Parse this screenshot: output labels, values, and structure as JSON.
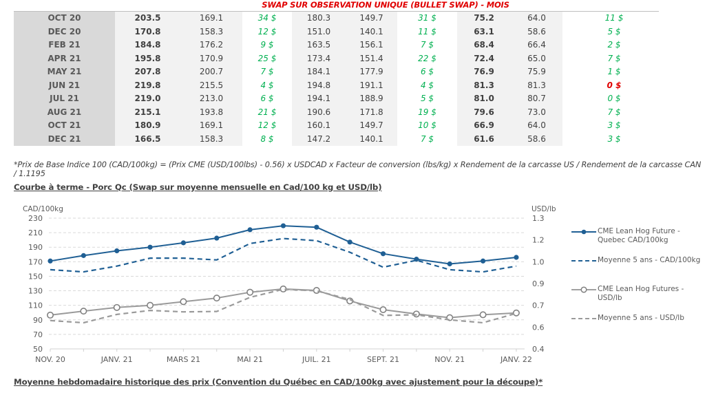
{
  "table": {
    "title": "SWAP SUR OBSERVATION UNIQUE (BULLET SWAP) - MOIS",
    "rows": [
      {
        "month": "OCT 20",
        "a1": "203.5",
        "a2": "169.1",
        "ad": "34 $",
        "b1": "180.3",
        "b2": "149.7",
        "bd": "31 $",
        "c1": "75.2",
        "c2": "64.0",
        "cd": "11 $",
        "cd_neg": false
      },
      {
        "month": "DEC 20",
        "a1": "170.8",
        "a2": "158.3",
        "ad": "12 $",
        "b1": "151.0",
        "b2": "140.1",
        "bd": "11 $",
        "c1": "63.1",
        "c2": "58.6",
        "cd": "5 $",
        "cd_neg": false
      },
      {
        "month": "FEB 21",
        "a1": "184.8",
        "a2": "176.2",
        "ad": "9 $",
        "b1": "163.5",
        "b2": "156.1",
        "bd": "7 $",
        "c1": "68.4",
        "c2": "66.4",
        "cd": "2 $",
        "cd_neg": false
      },
      {
        "month": "APR 21",
        "a1": "195.8",
        "a2": "170.9",
        "ad": "25 $",
        "b1": "173.4",
        "b2": "151.4",
        "bd": "22 $",
        "c1": "72.4",
        "c2": "65.0",
        "cd": "7 $",
        "cd_neg": false
      },
      {
        "month": "MAY 21",
        "a1": "207.8",
        "a2": "200.7",
        "ad": "7 $",
        "b1": "184.1",
        "b2": "177.9",
        "bd": "6 $",
        "c1": "76.9",
        "c2": "75.9",
        "cd": "1 $",
        "cd_neg": false
      },
      {
        "month": "JUN 21",
        "a1": "219.8",
        "a2": "215.5",
        "ad": "4 $",
        "b1": "194.8",
        "b2": "191.1",
        "bd": "4 $",
        "c1": "81.3",
        "c2": "81.3",
        "cd": "0 $",
        "cd_neg": true
      },
      {
        "month": "JUL 21",
        "a1": "219.0",
        "a2": "213.0",
        "ad": "6 $",
        "b1": "194.1",
        "b2": "188.9",
        "bd": "5 $",
        "c1": "81.0",
        "c2": "80.7",
        "cd": "0 $",
        "cd_neg": false
      },
      {
        "month": "AUG 21",
        "a1": "215.1",
        "a2": "193.8",
        "ad": "21 $",
        "b1": "190.6",
        "b2": "171.8",
        "bd": "19 $",
        "c1": "79.6",
        "c2": "73.0",
        "cd": "7 $",
        "cd_neg": false
      },
      {
        "month": "OCT 21",
        "a1": "180.9",
        "a2": "169.1",
        "ad": "12 $",
        "b1": "160.1",
        "b2": "149.7",
        "bd": "10 $",
        "c1": "66.9",
        "c2": "64.0",
        "cd": "3 $",
        "cd_neg": false
      },
      {
        "month": "DEC 21",
        "a1": "166.5",
        "a2": "158.3",
        "ad": "8 $",
        "b1": "147.2",
        "b2": "140.1",
        "bd": "7 $",
        "c1": "61.6",
        "c2": "58.6",
        "cd": "3 $",
        "cd_neg": false
      }
    ]
  },
  "footnote": "*Prix de Base Indice 100 (CAD/100kg) = (Prix CME (USD/100lbs) - 0.56) x USDCAD x Facteur de conversion (lbs/kg) x Rendement de la carcasse US / Rendement de la carcasse CAN / 1.1195",
  "chart_section_title": "Courbe à terme - Porc Qc (Swap sur moyenne mensuelle en Cad/100 kg et USD/lb)",
  "bottom_section_title": "Moyenne hebdomadaire historique des prix (Convention du Québec en CAD/100kg avec ajustement pour la découpe)*",
  "colors": {
    "blue": "#1f5f94",
    "grey": "#9a9a9a",
    "title_red": "#e00000",
    "positive_green": "#00b050"
  },
  "chart_data": {
    "type": "line",
    "title": "",
    "ylabel": "CAD/100kg",
    "y2label": "USD/lb",
    "ylim": [
      50,
      230
    ],
    "yticks": [
      "230",
      "210",
      "190",
      "170",
      "150",
      "130",
      "110",
      "90",
      "70",
      "50"
    ],
    "y2ticks": [
      "1.3",
      "1.2",
      "1.0",
      "0.9",
      "0.7",
      "0.6",
      "0.4"
    ],
    "grid": true,
    "legend_position": "right",
    "x": [
      "Nov 20",
      "Dec 20",
      "Jan 21",
      "Feb 21",
      "Mar 21",
      "Apr 21",
      "May 21",
      "Jun 21",
      "Jul 21",
      "Aug 21",
      "Sep 21",
      "Oct 21",
      "Nov 21",
      "Dec 21",
      "Jan 22"
    ],
    "xtick_labels": [
      {
        "index": 0,
        "label": "NOV. 20"
      },
      {
        "index": 2,
        "label": "JANV. 21"
      },
      {
        "index": 4,
        "label": "MARS 21"
      },
      {
        "index": 6,
        "label": "MAI 21"
      },
      {
        "index": 8,
        "label": "JUIL. 21"
      },
      {
        "index": 10,
        "label": "SEPT. 21"
      },
      {
        "index": 12,
        "label": "NOV. 21"
      },
      {
        "index": 14,
        "label": "JANV. 22"
      }
    ],
    "series": [
      {
        "name": "CME Lean Hog Future - Quebec CAD/100kg",
        "style": "solid-dot",
        "color": "#1f5f94",
        "values": [
          171,
          178.5,
          185,
          190,
          196,
          202.5,
          214,
          219.5,
          217.5,
          197,
          181,
          173.5,
          167,
          171,
          176
        ]
      },
      {
        "name": "Moyenne 5 ans - CAD/100kg",
        "style": "dashed",
        "color": "#1f5f94",
        "values": [
          159,
          156,
          164,
          175,
          175,
          172.5,
          195,
          202,
          199,
          183,
          162.5,
          172,
          159,
          156,
          164
        ]
      },
      {
        "name": "CME Lean Hog Futures - USD/lb",
        "style": "solid-circle",
        "color": "#9a9a9a",
        "values": [
          96.5,
          102,
          107,
          110,
          115,
          120,
          128,
          132.5,
          130.5,
          116,
          104,
          98,
          93,
          97,
          99.5
        ]
      },
      {
        "name": "Moyenne 5 ans - USD/lb",
        "style": "dashed",
        "color": "#9a9a9a",
        "values": [
          89,
          86,
          97.5,
          103,
          101,
          101.5,
          121,
          132,
          130,
          118,
          96,
          97,
          90,
          86,
          99
        ]
      }
    ]
  }
}
